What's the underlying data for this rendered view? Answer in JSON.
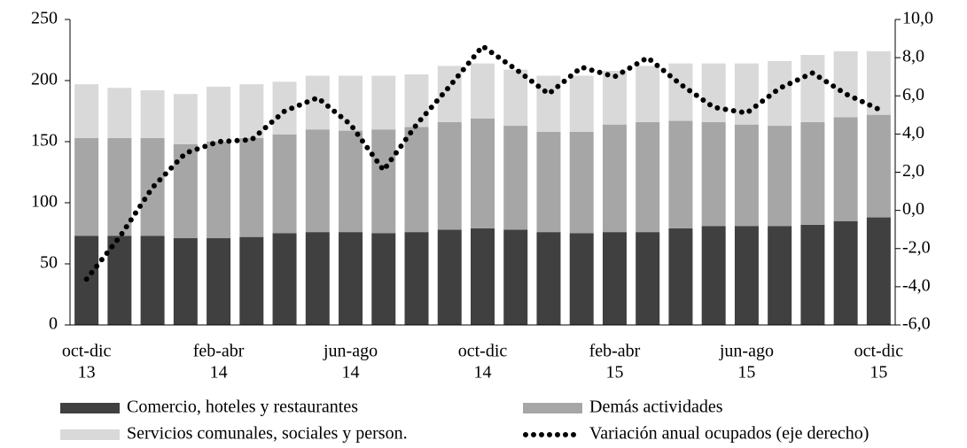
{
  "chart_data": {
    "type": "bar-line",
    "categories": [
      [
        "oct-dic",
        "13"
      ],
      null,
      null,
      null,
      [
        "feb-abr",
        "14"
      ],
      null,
      null,
      null,
      [
        "jun-ago",
        "14"
      ],
      null,
      null,
      null,
      [
        "oct-dic",
        "14"
      ],
      null,
      null,
      null,
      [
        "feb-abr",
        "15"
      ],
      null,
      null,
      null,
      [
        "jun-ago",
        "15"
      ],
      null,
      null,
      null,
      [
        "oct-dic",
        "15"
      ]
    ],
    "series": [
      {
        "name": "Comercio, hoteles y restaurantes",
        "color": "#404040",
        "type": "bar",
        "values": [
          73,
          73,
          73,
          71,
          71,
          72,
          75,
          76,
          76,
          75,
          76,
          78,
          79,
          78,
          76,
          75,
          76,
          76,
          79,
          81,
          81,
          81,
          82,
          85,
          88
        ]
      },
      {
        "name": "Demás actividades",
        "color": "#a6a6a6",
        "type": "bar",
        "values": [
          80,
          80,
          80,
          77,
          79,
          81,
          81,
          84,
          83,
          85,
          86,
          88,
          90,
          85,
          82,
          83,
          88,
          90,
          88,
          85,
          83,
          82,
          84,
          85,
          84
        ]
      },
      {
        "name": "Servicios comunales, sociales y person.",
        "color": "#d9d9d9",
        "type": "bar",
        "values": [
          44,
          41,
          39,
          41,
          45,
          44,
          43,
          44,
          45,
          44,
          43,
          46,
          45,
          46,
          46,
          46,
          44,
          46,
          47,
          48,
          50,
          53,
          55,
          54,
          52
        ]
      },
      {
        "name": "Variación anual ocupados (eje derecho)",
        "color": "#000000",
        "type": "line",
        "axis": "y2",
        "values": [
          -3.6,
          -1.4,
          1.2,
          3.0,
          3.6,
          3.7,
          5.2,
          5.9,
          4.5,
          2.1,
          4.5,
          6.5,
          8.6,
          7.4,
          6.1,
          7.5,
          7.0,
          8.0,
          6.6,
          5.4,
          5.1,
          6.4,
          7.2,
          6.1,
          5.3
        ]
      }
    ],
    "stacked": true,
    "ylim": [
      0,
      250
    ],
    "yticks": [
      0,
      50,
      100,
      150,
      200,
      250
    ],
    "y2lim": [
      -6,
      10
    ],
    "y2ticks": [
      {
        "value": -6,
        "label": "-6,0"
      },
      {
        "value": -4,
        "label": "-4,0"
      },
      {
        "value": -2,
        "label": "-2,0"
      },
      {
        "value": 0,
        "label": "0,0"
      },
      {
        "value": 2,
        "label": "2,0"
      },
      {
        "value": 4,
        "label": "4,0"
      },
      {
        "value": 6,
        "label": "6,0"
      },
      {
        "value": 8,
        "label": "8,0"
      },
      {
        "value": 10,
        "label": "10,0"
      }
    ],
    "grid": false,
    "legend": "bottom"
  }
}
